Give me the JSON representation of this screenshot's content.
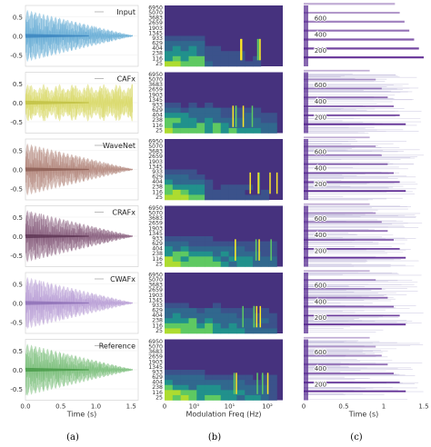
{
  "chart_data": {
    "type": "figure",
    "rows": [
      {
        "label": "Input",
        "color": "#6aaed6",
        "dark": "#2171b5",
        "shape": "decay"
      },
      {
        "label": "CAFx",
        "color": "#d9d96a",
        "dark": "#b5b530",
        "shape": "flat"
      },
      {
        "label": "WaveNet",
        "color": "#b58a80",
        "dark": "#7a4a40",
        "shape": "decay"
      },
      {
        "label": "CRAFx",
        "color": "#8a6080",
        "dark": "#4a2040",
        "shape": "decay"
      },
      {
        "label": "CWAFx",
        "color": "#b9a0d6",
        "dark": "#7a5aa8",
        "shape": "decay"
      },
      {
        "label": "Reference",
        "color": "#7dc07d",
        "dark": "#2f8a2f",
        "shape": "decay"
      }
    ],
    "waveform": {
      "xlabel": "Time (s)",
      "x_ticks": [
        "0.0",
        "0.5",
        "1.0",
        "1.5"
      ],
      "y_ticks": [
        "0.5",
        "0.0",
        "-0.5"
      ],
      "xlim": [
        0,
        1.6
      ],
      "ylim": [
        -0.75,
        0.75
      ]
    },
    "modulation": {
      "xlabel": "Modulation Freq (Hz)",
      "x_ticks": [
        "0",
        "10⁰",
        "10¹",
        "10²"
      ],
      "y_ticks": [
        "6950",
        "5070",
        "3683",
        "2659",
        "1903",
        "1345",
        "933",
        "629",
        "404",
        "238",
        "116",
        "25"
      ]
    },
    "spectrogram": {
      "xlabel": "Time (s)",
      "x_ticks": [
        "0",
        "0.5",
        "1",
        "1.5"
      ],
      "y_ticks": [
        "600",
        "400",
        "200"
      ],
      "harmonics_hz": [
        110,
        220,
        330,
        440,
        550,
        660,
        770
      ],
      "ylim": [
        0,
        750
      ]
    },
    "panel_labels": [
      "(a)",
      "(b)",
      "(c)"
    ]
  }
}
